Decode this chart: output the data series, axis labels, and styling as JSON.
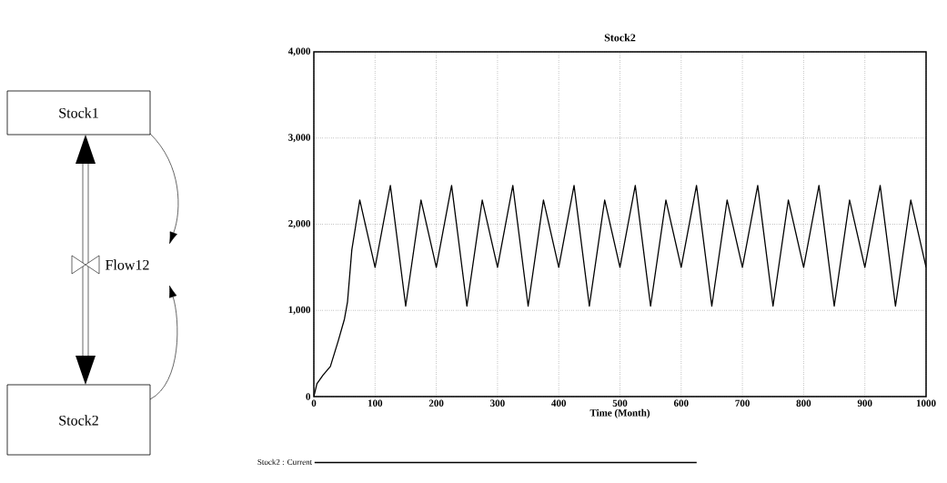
{
  "chart_data": [
    {
      "type": "line",
      "title": "Stock2",
      "xlabel": "Time (Month)",
      "x": [
        0,
        5,
        15,
        27,
        40,
        50,
        55,
        62,
        75,
        100,
        125,
        150,
        175,
        200,
        225,
        250,
        275,
        300,
        325,
        350,
        375,
        400,
        425,
        450,
        475,
        500,
        525,
        550,
        575,
        600,
        625,
        650,
        675,
        700,
        725,
        750,
        775,
        800,
        825,
        850,
        875,
        900,
        925,
        950,
        975,
        1000
      ],
      "series": [
        {
          "name": "Stock2 : Current",
          "color": "#000000",
          "values": [
            0,
            150,
            250,
            350,
            650,
            900,
            1100,
            1700,
            2280,
            1500,
            2450,
            1050,
            2280,
            1500,
            2450,
            1050,
            2280,
            1500,
            2450,
            1050,
            2280,
            1500,
            2450,
            1050,
            2280,
            1500,
            2450,
            1050,
            2280,
            1500,
            2450,
            1050,
            2280,
            1500,
            2450,
            1050,
            2280,
            1500,
            2450,
            1050,
            2280,
            1500,
            2450,
            1050,
            2280,
            1500
          ]
        }
      ],
      "xlim": [
        0,
        1000
      ],
      "ylim": [
        0,
        4000
      ],
      "xticks": [
        0,
        100,
        200,
        300,
        400,
        500,
        600,
        700,
        800,
        900,
        1000
      ],
      "yticks": [
        0,
        {
          "value": 1000,
          "label": "1,000"
        },
        {
          "value": 2000,
          "label": "2,000"
        },
        {
          "value": 3000,
          "label": "3,000"
        },
        {
          "value": 4000,
          "label": "4,000"
        }
      ],
      "grid": true,
      "legend": "bottom left"
    },
    {
      "type": "other",
      "annotations": [
        "Stock1",
        "Flow12",
        "Stock2"
      ]
    }
  ]
}
